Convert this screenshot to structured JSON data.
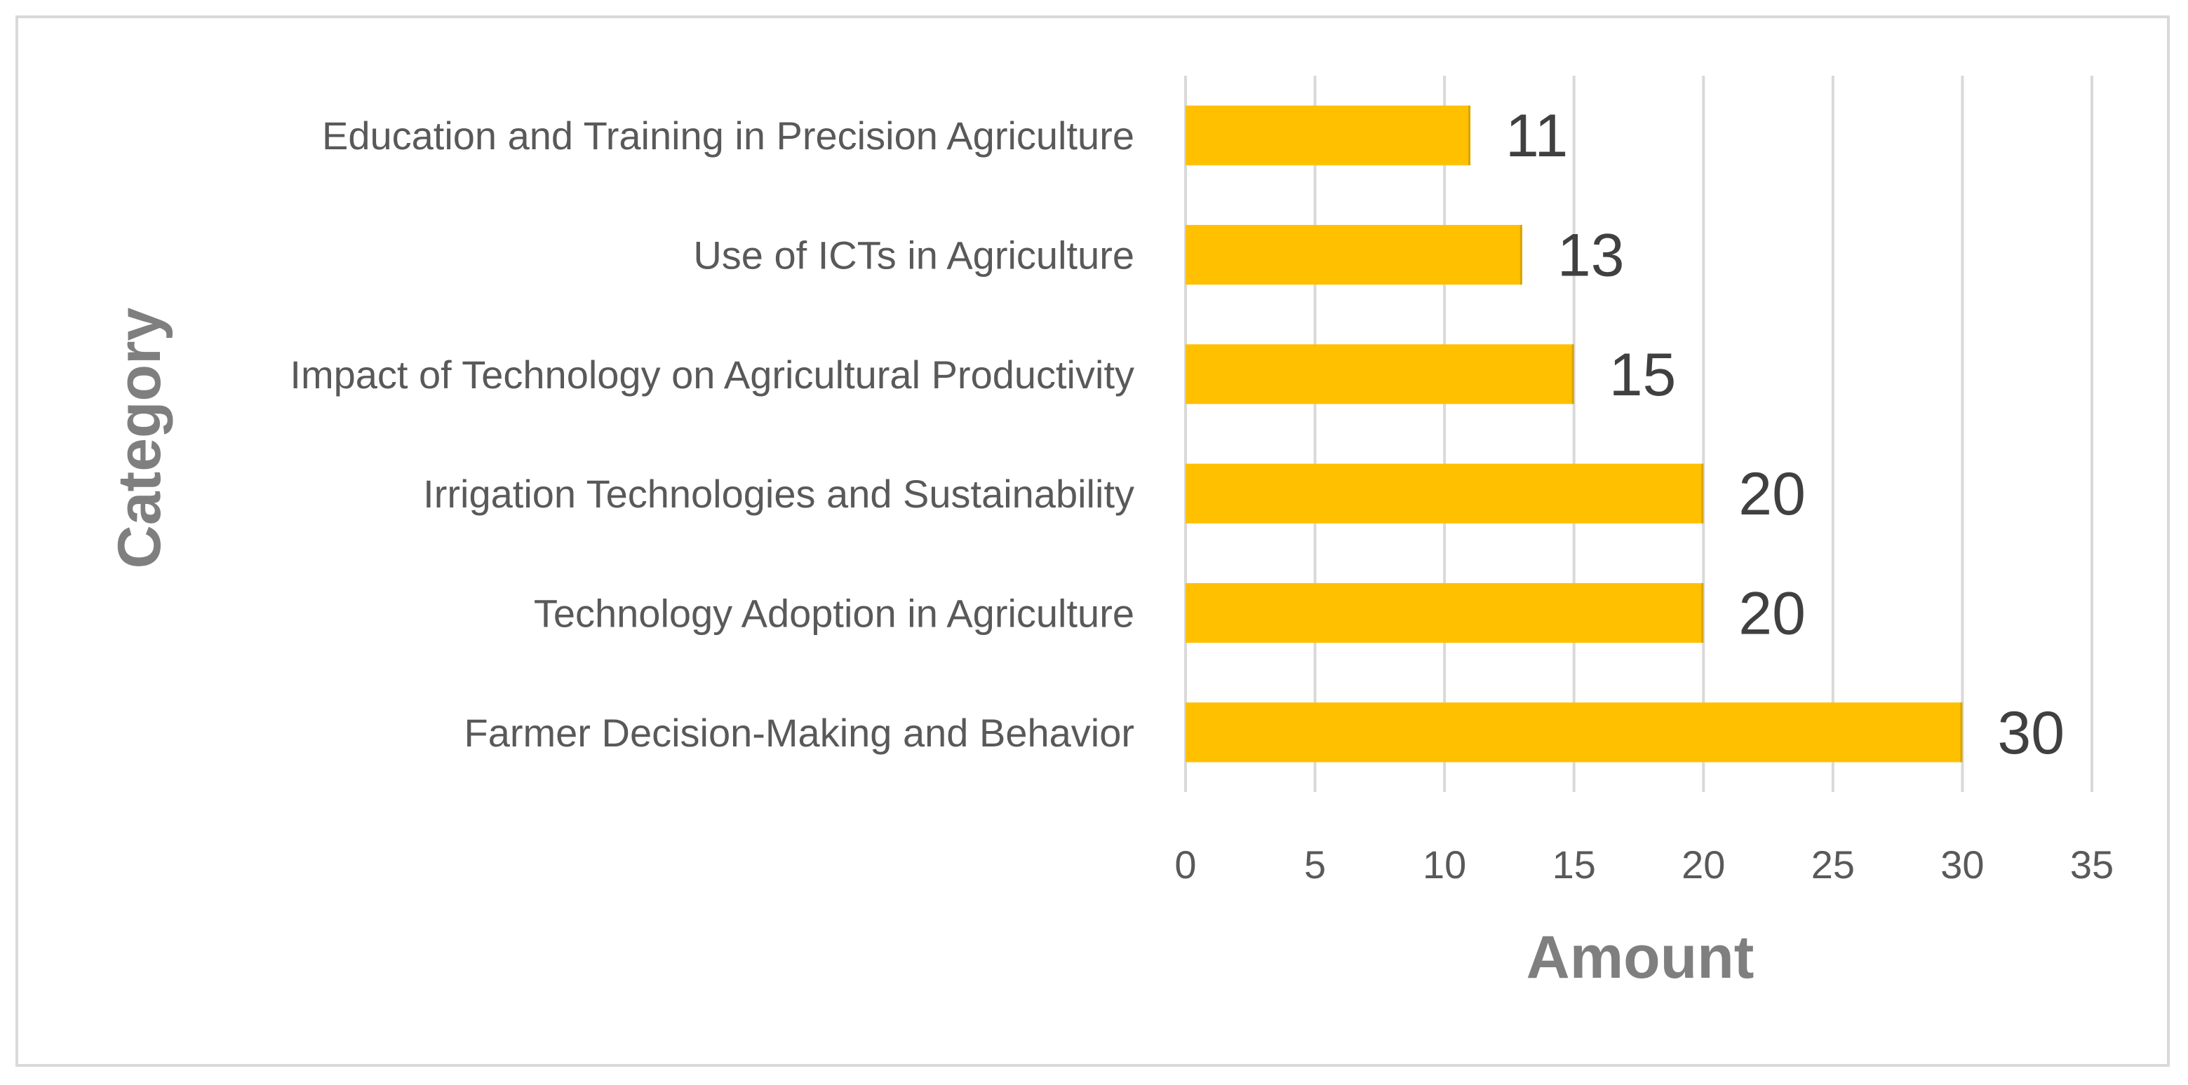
{
  "chart_data": {
    "type": "bar",
    "orientation": "horizontal",
    "categories": [
      "Farmer Decision-Making and Behavior",
      "Technology Adoption in Agriculture",
      "Irrigation Technologies and Sustainability",
      "Impact of Technology on Agricultural Productivity",
      "Use of ICTs in Agriculture",
      "Education and Training in Precision Agriculture"
    ],
    "values": [
      30,
      20,
      20,
      15,
      13,
      11
    ],
    "value_labels": [
      "30",
      "20",
      "20",
      "15",
      "13",
      "11"
    ],
    "xlabel": "Amount",
    "ylabel": "Category",
    "xlim": [
      0,
      35
    ],
    "xticks": [
      0,
      5,
      10,
      15,
      20,
      25,
      30,
      35
    ],
    "xtick_labels": [
      "0",
      "5",
      "10",
      "15",
      "20",
      "25",
      "30",
      "35"
    ],
    "grid": "vertical",
    "bar_color": "#FFC000",
    "grid_color": "#d9d9d9"
  }
}
